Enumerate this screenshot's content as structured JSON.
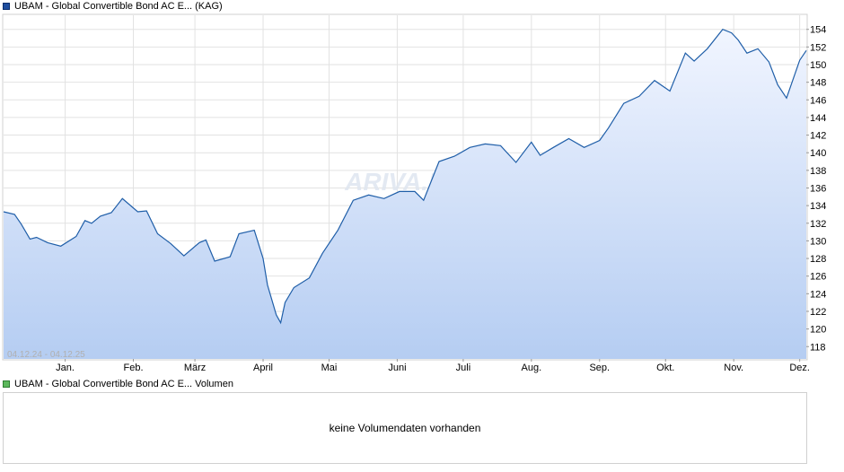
{
  "price_legend": {
    "label": "UBAM - Global Convertible Bond AC E... (KAG)",
    "color": "#1f4e9e"
  },
  "volume_legend": {
    "label": "UBAM - Global Convertible Bond AC E... Volumen",
    "color": "#5cb85c"
  },
  "volume_panel": {
    "message": "keine Volumendaten vorhanden"
  },
  "chart_data": {
    "type": "area",
    "date_range_label": "04.12.24 - 04.12.25",
    "x_start": "2024-12-04",
    "x_end": "2025-12-04",
    "month_labels": [
      "Jan.",
      "Feb.",
      "März",
      "April",
      "Mai",
      "Juni",
      "Juli",
      "Aug.",
      "Sep.",
      "Okt.",
      "Nov.",
      "Dez."
    ],
    "month_dates": [
      "2025-01-01",
      "2025-02-01",
      "2025-03-01",
      "2025-04-01",
      "2025-05-01",
      "2025-06-01",
      "2025-07-01",
      "2025-08-01",
      "2025-09-01",
      "2025-10-01",
      "2025-11-01",
      "2025-12-01"
    ],
    "y_ticks": [
      118,
      120,
      122,
      124,
      126,
      128,
      130,
      132,
      134,
      136,
      138,
      140,
      142,
      144,
      146,
      148,
      150,
      152,
      154
    ],
    "ylim": [
      116.6,
      155.6
    ],
    "grid": true,
    "line_color": "#1f5ea8",
    "watermark": "ARIVA.DE",
    "series": [
      {
        "x": [
          "2024-12-04",
          "2024-12-09",
          "2024-12-12",
          "2024-12-16",
          "2024-12-19",
          "2024-12-24",
          "2024-12-30",
          "2025-01-06",
          "2025-01-10",
          "2025-01-13",
          "2025-01-17",
          "2025-01-22",
          "2025-01-27",
          "2025-02-03",
          "2025-02-07",
          "2025-02-12",
          "2025-02-18",
          "2025-02-24",
          "2025-03-03",
          "2025-03-06",
          "2025-03-10",
          "2025-03-17",
          "2025-03-21",
          "2025-03-28",
          "2025-04-01",
          "2025-04-03",
          "2025-04-07",
          "2025-04-09",
          "2025-04-11",
          "2025-04-15",
          "2025-04-22",
          "2025-04-28",
          "2025-05-05",
          "2025-05-12",
          "2025-05-19",
          "2025-05-26",
          "2025-06-02",
          "2025-06-09",
          "2025-06-13",
          "2025-06-20",
          "2025-06-27",
          "2025-07-04",
          "2025-07-11",
          "2025-07-18",
          "2025-07-25",
          "2025-08-01",
          "2025-08-05",
          "2025-08-11",
          "2025-08-18",
          "2025-08-25",
          "2025-09-01",
          "2025-09-05",
          "2025-09-12",
          "2025-09-19",
          "2025-09-26",
          "2025-10-03",
          "2025-10-10",
          "2025-10-14",
          "2025-10-20",
          "2025-10-27",
          "2025-10-31",
          "2025-11-03",
          "2025-11-07",
          "2025-11-12",
          "2025-11-17",
          "2025-11-21",
          "2025-11-25",
          "2025-12-01",
          "2025-12-04"
        ],
        "y": [
          133.3,
          133.0,
          131.9,
          130.2,
          130.4,
          129.8,
          129.4,
          130.5,
          132.3,
          132.0,
          132.8,
          133.2,
          134.8,
          133.3,
          133.4,
          130.8,
          129.7,
          128.3,
          129.8,
          130.1,
          127.7,
          128.2,
          130.8,
          131.2,
          128.0,
          125.0,
          121.6,
          120.7,
          123.0,
          124.7,
          125.8,
          128.6,
          131.2,
          134.6,
          135.2,
          134.8,
          135.6,
          135.6,
          134.6,
          139.0,
          139.6,
          140.6,
          141.0,
          140.8,
          138.9,
          141.2,
          139.7,
          140.6,
          141.6,
          140.6,
          141.4,
          142.8,
          145.6,
          146.4,
          148.2,
          147.0,
          151.3,
          150.4,
          151.8,
          154.0,
          153.6,
          152.8,
          151.3,
          151.8,
          150.3,
          147.7,
          146.2,
          150.5,
          151.6
        ]
      }
    ]
  }
}
